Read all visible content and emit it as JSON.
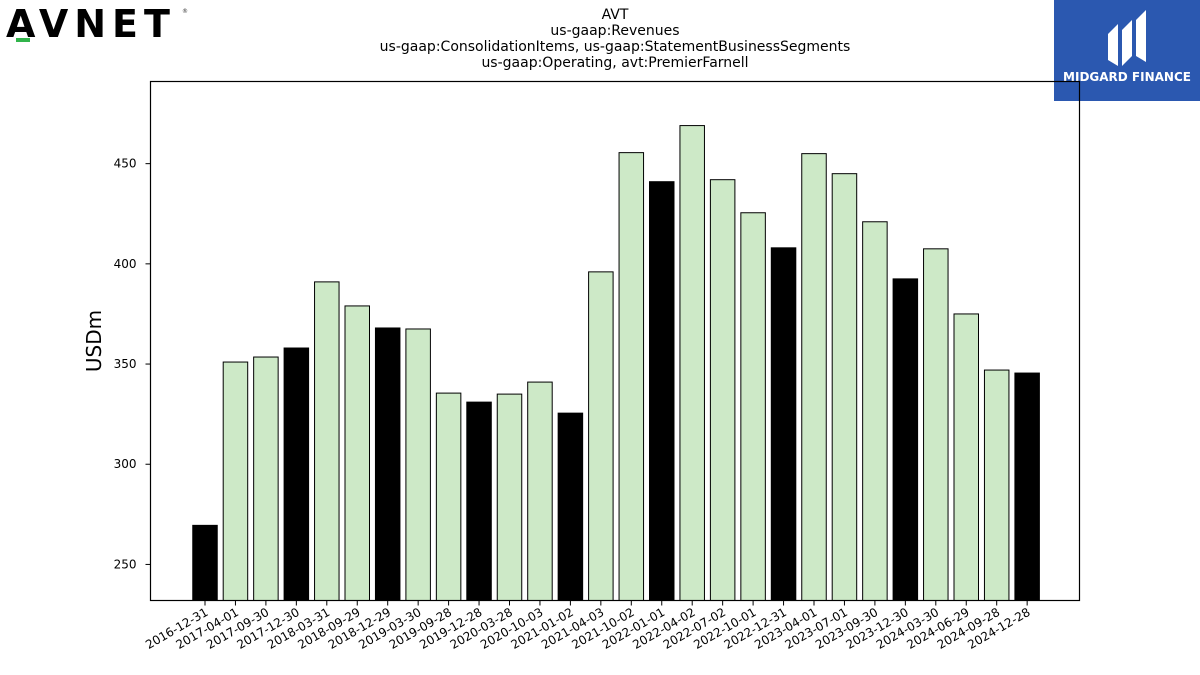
{
  "brand": {
    "logo_text": "AVNET",
    "registered_mark": "®",
    "accent_color": "#31b44b"
  },
  "badge": {
    "text": "MIDGARD FINANCE",
    "color": "#2b58b0"
  },
  "chart_data": {
    "type": "bar",
    "title_lines": [
      "AVT",
      "us-gaap:Revenues",
      "us-gaap:ConsolidationItems, us-gaap:StatementBusinessSegments",
      "us-gaap:Operating, avt:PremierFarnell"
    ],
    "xlabel": "",
    "ylabel": "USDm",
    "ylim": [
      232,
      491
    ],
    "yticks": [
      250,
      300,
      350,
      400,
      450
    ],
    "grid": false,
    "categories": [
      "2016-12-31",
      "2017-04-01",
      "2017-09-30",
      "2017-12-30",
      "2018-03-31",
      "2018-09-29",
      "2018-12-29",
      "2019-03-30",
      "2019-09-28",
      "2019-12-28",
      "2020-03-28",
      "2020-10-03",
      "2021-01-02",
      "2021-04-03",
      "2021-10-02",
      "2022-01-01",
      "2022-04-02",
      "2022-07-02",
      "2022-10-01",
      "2022-12-31",
      "2023-04-01",
      "2023-07-01",
      "2023-09-30",
      "2023-12-30",
      "2024-03-30",
      "2024-06-29",
      "2024-09-28",
      "2024-12-28"
    ],
    "values": [
      269.5,
      351,
      353.5,
      358,
      391,
      379,
      368,
      367.5,
      335.5,
      331,
      335,
      341,
      325.5,
      396,
      455.5,
      441,
      469,
      442,
      425.5,
      408,
      455,
      445,
      421,
      392.5,
      407.5,
      375,
      347,
      345.5
    ],
    "highlight": [
      true,
      false,
      false,
      true,
      false,
      false,
      true,
      false,
      false,
      true,
      false,
      false,
      true,
      false,
      false,
      true,
      false,
      false,
      false,
      true,
      false,
      false,
      false,
      true,
      false,
      false,
      false,
      true
    ],
    "colors": {
      "highlight": "#000000",
      "normal": "#cde9c7",
      "edge": "#000000"
    }
  }
}
